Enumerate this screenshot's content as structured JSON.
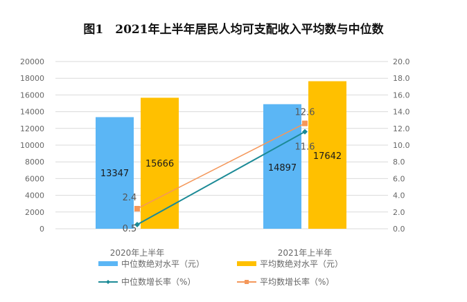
{
  "title": "图1　2021年上半年居民人均可支配收入平均数与中位数",
  "chart_data": {
    "type": "bar+line",
    "title": "图1　2021年上半年居民人均可支配收入平均数与中位数",
    "categories": [
      "2020年上半年",
      "2021年上半年"
    ],
    "left_axis": {
      "range": [
        0,
        20000
      ],
      "ticks": [
        "0",
        "2000",
        "4000",
        "6000",
        "8000",
        "10000",
        "12000",
        "14000",
        "16000",
        "18000",
        "20000"
      ]
    },
    "right_axis": {
      "range": [
        0,
        20
      ],
      "ticks": [
        "0.0",
        "2.0",
        "4.0",
        "6.0",
        "8.0",
        "10.0",
        "12.0",
        "14.0",
        "16.0",
        "18.0",
        "20.0"
      ]
    },
    "grid": true,
    "legend_position": "bottom",
    "series": [
      {
        "name": "中位数绝对水平（元）",
        "kind": "bar",
        "axis": "left",
        "color": "#5bb6f5",
        "values": [
          13347,
          14897
        ],
        "labels": [
          "13347",
          "14897"
        ]
      },
      {
        "name": "平均数绝对水平（元）",
        "kind": "bar",
        "axis": "left",
        "color": "#ffc000",
        "values": [
          15666,
          17642
        ],
        "labels": [
          "15666",
          "17642"
        ]
      },
      {
        "name": "中位数增长率（%）",
        "kind": "line",
        "axis": "right",
        "color": "#1b8a96",
        "marker": "diamond",
        "values": [
          0.5,
          11.6
        ],
        "labels": [
          "0.5",
          "11.6"
        ]
      },
      {
        "name": "平均数增长率（%）",
        "kind": "line",
        "axis": "right",
        "color": "#f4975a",
        "marker": "square",
        "values": [
          2.4,
          12.6
        ],
        "labels": [
          "2.4",
          "12.6"
        ]
      }
    ]
  }
}
